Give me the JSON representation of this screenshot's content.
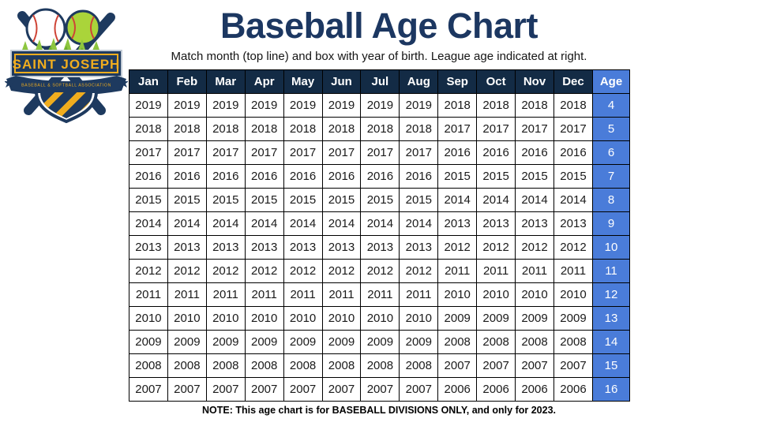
{
  "header": {
    "title": "Baseball Age Chart",
    "subtitle": "Match month (top line) and box with year of birth. League age indicated at right."
  },
  "logo": {
    "name": "SAINT JOSEPH",
    "subtext": "BASEBALL & SOFTBALL ASSOCIATION"
  },
  "note": "NOTE: This age chart is for BASEBALL DIVISIONS ONLY, and only for 2023.",
  "colors": {
    "title_navy": "#1c3761",
    "table_header_navy": "#132b45",
    "age_column_blue": "#4a7cd9",
    "cell_border": "#000000",
    "logo_navy": "#1e3a5f",
    "logo_gold": "#f0ad1e",
    "logo_green": "#8dc63f",
    "stitch_red": "#cf4436"
  },
  "chart_data": {
    "type": "table",
    "title": "Baseball Age Chart",
    "columns": [
      "Jan",
      "Feb",
      "Mar",
      "Apr",
      "May",
      "Jun",
      "Jul",
      "Aug",
      "Sep",
      "Oct",
      "Nov",
      "Dec",
      "Age"
    ],
    "rows": [
      {
        "years": [
          "2019",
          "2019",
          "2019",
          "2019",
          "2019",
          "2019",
          "2019",
          "2019",
          "2018",
          "2018",
          "2018",
          "2018"
        ],
        "age": "4"
      },
      {
        "years": [
          "2018",
          "2018",
          "2018",
          "2018",
          "2018",
          "2018",
          "2018",
          "2018",
          "2017",
          "2017",
          "2017",
          "2017"
        ],
        "age": "5"
      },
      {
        "years": [
          "2017",
          "2017",
          "2017",
          "2017",
          "2017",
          "2017",
          "2017",
          "2017",
          "2016",
          "2016",
          "2016",
          "2016"
        ],
        "age": "6"
      },
      {
        "years": [
          "2016",
          "2016",
          "2016",
          "2016",
          "2016",
          "2016",
          "2016",
          "2016",
          "2015",
          "2015",
          "2015",
          "2015"
        ],
        "age": "7"
      },
      {
        "years": [
          "2015",
          "2015",
          "2015",
          "2015",
          "2015",
          "2015",
          "2015",
          "2015",
          "2014",
          "2014",
          "2014",
          "2014"
        ],
        "age": "8"
      },
      {
        "years": [
          "2014",
          "2014",
          "2014",
          "2014",
          "2014",
          "2014",
          "2014",
          "2014",
          "2013",
          "2013",
          "2013",
          "2013"
        ],
        "age": "9"
      },
      {
        "years": [
          "2013",
          "2013",
          "2013",
          "2013",
          "2013",
          "2013",
          "2013",
          "2013",
          "2012",
          "2012",
          "2012",
          "2012"
        ],
        "age": "10"
      },
      {
        "years": [
          "2012",
          "2012",
          "2012",
          "2012",
          "2012",
          "2012",
          "2012",
          "2012",
          "2011",
          "2011",
          "2011",
          "2011"
        ],
        "age": "11"
      },
      {
        "years": [
          "2011",
          "2011",
          "2011",
          "2011",
          "2011",
          "2011",
          "2011",
          "2011",
          "2010",
          "2010",
          "2010",
          "2010"
        ],
        "age": "12"
      },
      {
        "years": [
          "2010",
          "2010",
          "2010",
          "2010",
          "2010",
          "2010",
          "2010",
          "2010",
          "2009",
          "2009",
          "2009",
          "2009"
        ],
        "age": "13"
      },
      {
        "years": [
          "2009",
          "2009",
          "2009",
          "2009",
          "2009",
          "2009",
          "2009",
          "2009",
          "2008",
          "2008",
          "2008",
          "2008"
        ],
        "age": "14"
      },
      {
        "years": [
          "2008",
          "2008",
          "2008",
          "2008",
          "2008",
          "2008",
          "2008",
          "2008",
          "2007",
          "2007",
          "2007",
          "2007"
        ],
        "age": "15"
      },
      {
        "years": [
          "2007",
          "2007",
          "2007",
          "2007",
          "2007",
          "2007",
          "2007",
          "2007",
          "2006",
          "2006",
          "2006",
          "2006"
        ],
        "age": "16"
      }
    ]
  }
}
